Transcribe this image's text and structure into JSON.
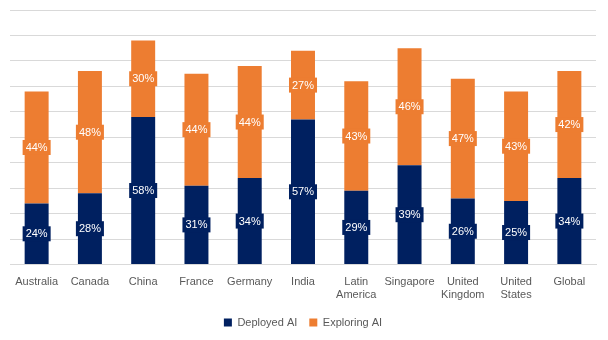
{
  "chart_data": {
    "type": "bar",
    "categories": [
      "Australia",
      "Canada",
      "China",
      "France",
      "Germany",
      "India",
      "Latin America",
      "Singapore",
      "United Kingdom",
      "United States",
      "Global"
    ],
    "series": [
      {
        "name": "Deployed AI",
        "color": "#002060",
        "values": [
          24,
          28,
          58,
          31,
          34,
          57,
          29,
          39,
          26,
          25,
          34
        ],
        "value_labels": [
          "24%",
          "28%",
          "58%",
          "31%",
          "34%",
          "57%",
          "29%",
          "39%",
          "26%",
          "25%",
          "34%"
        ]
      },
      {
        "name": "Exploring AI",
        "color": "#ed7d31",
        "values": [
          44,
          48,
          30,
          44,
          44,
          27,
          43,
          46,
          47,
          43,
          42
        ],
        "value_labels": [
          "44%",
          "48%",
          "30%",
          "44%",
          "44%",
          "27%",
          "43%",
          "46%",
          "47%",
          "43%",
          "42%"
        ]
      }
    ],
    "ylim": [
      0,
      100
    ],
    "yticks": [
      0,
      10,
      20,
      30,
      40,
      50,
      60,
      70,
      80,
      90,
      100
    ],
    "stacked": true,
    "grid": true,
    "legend": "bottom",
    "data_labels": true,
    "tick_labels": "x"
  }
}
